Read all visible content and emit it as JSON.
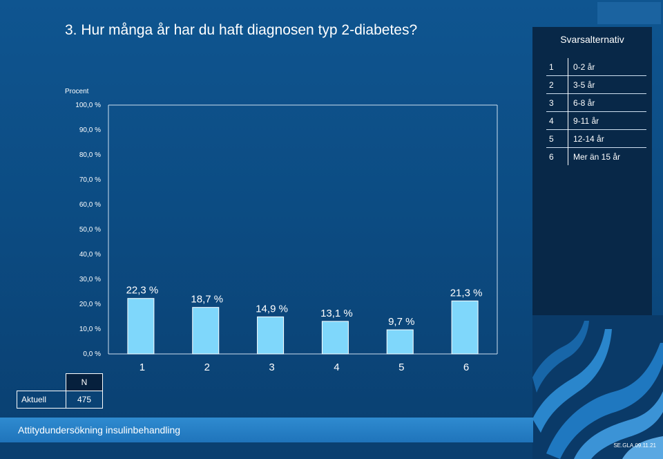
{
  "title": "3. Hur många år har du haft diagnosen typ 2-diabetes?",
  "legend": {
    "header": "Svarsalternativ",
    "items": [
      {
        "num": "1",
        "label": "0-2 år"
      },
      {
        "num": "2",
        "label": "3-5 år"
      },
      {
        "num": "3",
        "label": "6-8 år"
      },
      {
        "num": "4",
        "label": "9-11 år"
      },
      {
        "num": "5",
        "label": "12-14 år"
      },
      {
        "num": "6",
        "label": "Mer än 15 år"
      }
    ]
  },
  "summary": {
    "n_header": "N",
    "row_label": "Aktuell",
    "n_value": "475"
  },
  "footer": {
    "text": "Attitydundersökning insulinbehandling",
    "code": "SE.GLA.09.11.21"
  },
  "colors": {
    "bar": "#7fd7fb",
    "background": "#0c4c83",
    "panel": "#082848"
  },
  "chart_data": {
    "type": "bar",
    "ylabel": "Procent",
    "categories": [
      "1",
      "2",
      "3",
      "4",
      "5",
      "6"
    ],
    "values": [
      22.3,
      18.7,
      14.9,
      13.1,
      9.7,
      21.3
    ],
    "data_labels": [
      "22,3 %",
      "18,7 %",
      "14,9 %",
      "13,1 %",
      "9,7 %",
      "21,3 %"
    ],
    "yticks": [
      "0,0 %",
      "10,0 %",
      "20,0 %",
      "30,0 %",
      "40,0 %",
      "50,0 %",
      "60,0 %",
      "70,0 %",
      "80,0 %",
      "90,0 %",
      "100,0 %"
    ],
    "ylim": [
      0,
      100
    ],
    "grid": false
  }
}
